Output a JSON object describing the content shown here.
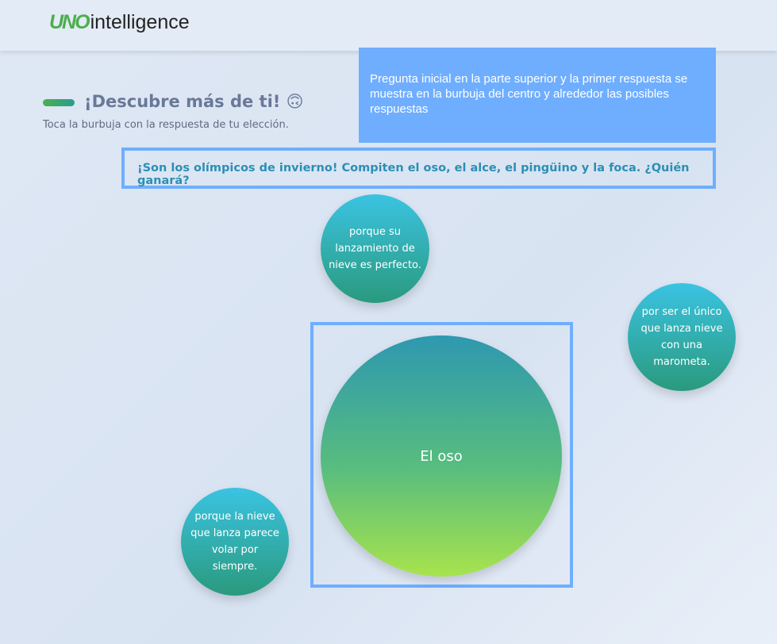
{
  "header": {
    "logo_mark": "UNO",
    "logo_text": "intelligence"
  },
  "intro": {
    "title": "¡Descubre más de ti! 🙃",
    "subtitle": "Toca la burbuja con la respuesta de tu elección."
  },
  "note": "Pregunta inicial en la parte superior y la primer respuesta se muestra en la burbuja del centro y alrededor las posibles respuestas",
  "question": "¡Son los olímpicos de invierno! Compiten el oso, el alce, el pingüino y la foca. ¿Quién ganará?",
  "main_bubble": "El oso",
  "bubbles": [
    "porque su lanzamiento de nieve es perfecto.",
    "por ser el único que lanza nieve con una marometa.",
    "porque la nieve que lanza parece volar por siempre."
  ]
}
